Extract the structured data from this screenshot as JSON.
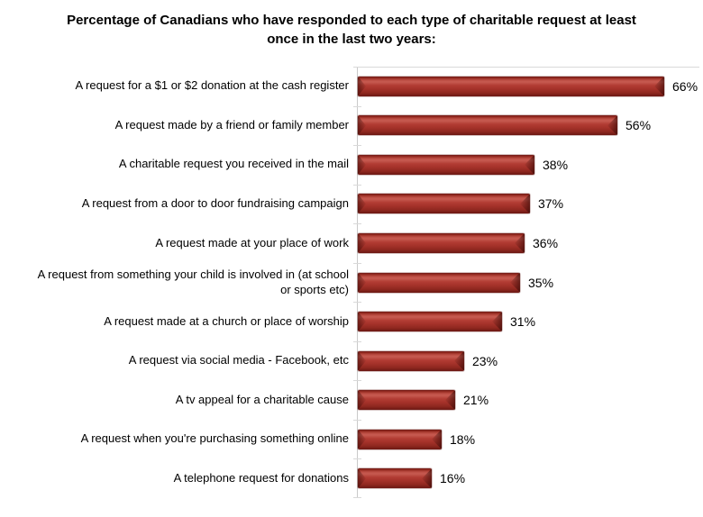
{
  "chart_data": {
    "type": "bar",
    "orientation": "horizontal",
    "title": "Percentage of Canadians who have responded to each type of charitable request at least once in the last two years:",
    "categories": [
      "A request for a $1 or $2 donation at the cash register",
      "A request made by a friend or family member",
      "A charitable request you received in the mail",
      "A request from a door to door fundraising campaign",
      "A request made at your place of work",
      "A request from something your child is involved in (at school or sports etc)",
      "A request made at a church or place of worship",
      "A request via social media - Facebook, etc",
      "A tv appeal for a charitable cause",
      "A request when you're purchasing something online",
      "A telephone request for donations"
    ],
    "values": [
      66,
      56,
      38,
      37,
      36,
      35,
      31,
      23,
      21,
      18,
      16
    ],
    "data_labels": [
      "66%",
      "56%",
      "38%",
      "37%",
      "36%",
      "35%",
      "31%",
      "23%",
      "21%",
      "18%",
      "16%"
    ],
    "data_label_position": "outside-end",
    "xlabel": "",
    "ylabel": "",
    "xlim": [
      0,
      74
    ],
    "grid": "off",
    "legend": "none",
    "bar_color": "#b23c33",
    "bar_highlight_color": "#c75b51",
    "bar_edge_color": "#6b1813",
    "axis_color": "#c9c9c9",
    "title_color": "#000000",
    "label_color": "#000000"
  }
}
